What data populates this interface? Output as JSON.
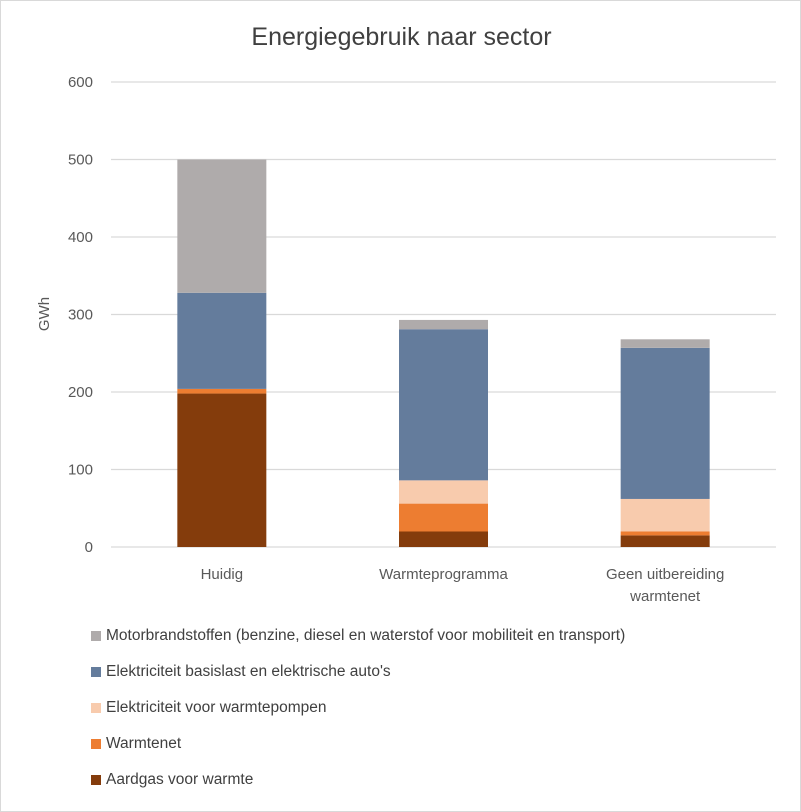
{
  "chart_data": {
    "type": "bar",
    "stacked": true,
    "title": "Energiegebruik naar sector",
    "xlabel": "",
    "ylabel": "GWh",
    "ylim": [
      0,
      600
    ],
    "yticks": [
      0,
      100,
      200,
      300,
      400,
      500,
      600
    ],
    "grid": true,
    "legend_position": "bottom",
    "categories": [
      "Huidig",
      "Warmteprogramma",
      "Geen uitbereiding warmtenet"
    ],
    "category_lines": [
      [
        "Huidig"
      ],
      [
        "Warmteprogramma"
      ],
      [
        "Geen uitbereiding",
        "warmtenet"
      ]
    ],
    "series": [
      {
        "name": "Aardgas voor warmte",
        "color": "#843c0c",
        "values": [
          198,
          20,
          15
        ]
      },
      {
        "name": "Warmtenet",
        "color": "#ed7d31",
        "values": [
          6,
          36,
          5
        ]
      },
      {
        "name": "Elektriciteit voor warmtepompen",
        "color": "#f8cbad",
        "values": [
          0,
          30,
          42
        ]
      },
      {
        "name": "Elektriciteit basislast en elektrische auto's",
        "color": "#647c9c",
        "values": [
          124,
          195,
          195
        ]
      },
      {
        "name": "Motorbrandstoffen (benzine, diesel en waterstof  voor mobiliteit en transport)",
        "color": "#afabab",
        "values": [
          172,
          12,
          11
        ]
      }
    ]
  }
}
